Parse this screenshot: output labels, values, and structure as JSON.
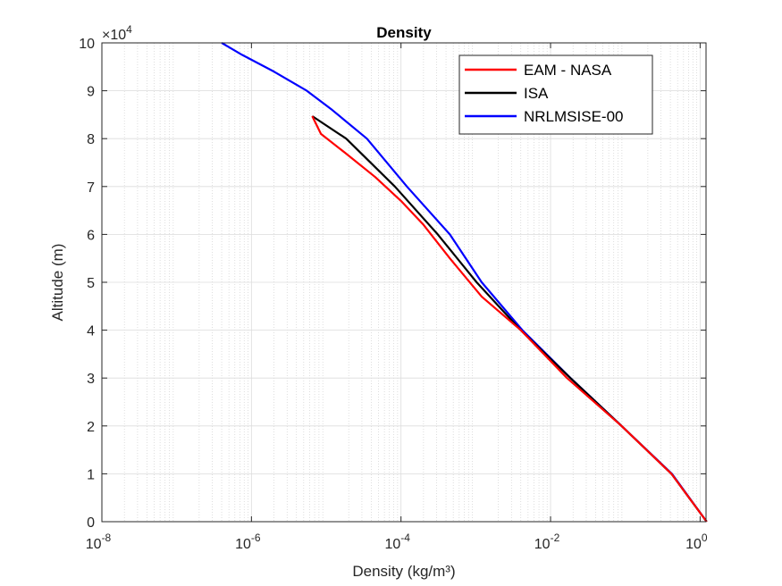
{
  "chart_data": {
    "type": "line",
    "title": "Density",
    "xlabel": "Density (kg/m³)",
    "ylabel": "Altitude (m)",
    "xscale": "log",
    "xlim": [
      1e-08,
      1.2
    ],
    "ylim": [
      0,
      100000
    ],
    "y_exponent_label": "×10^4",
    "x_ticks": [
      {
        "value": 1e-08,
        "base": "10",
        "exp": "-8"
      },
      {
        "value": 1e-06,
        "base": "10",
        "exp": "-6"
      },
      {
        "value": 0.0001,
        "base": "10",
        "exp": "-4"
      },
      {
        "value": 0.01,
        "base": "10",
        "exp": "-2"
      },
      {
        "value": 1,
        "base": "10",
        "exp": "0"
      }
    ],
    "y_ticks": [
      {
        "value": 0,
        "label": "0"
      },
      {
        "value": 10000,
        "label": "1"
      },
      {
        "value": 20000,
        "label": "2"
      },
      {
        "value": 30000,
        "label": "3"
      },
      {
        "value": 40000,
        "label": "4"
      },
      {
        "value": 50000,
        "label": "5"
      },
      {
        "value": 60000,
        "label": "6"
      },
      {
        "value": 70000,
        "label": "7"
      },
      {
        "value": 80000,
        "label": "8"
      },
      {
        "value": 90000,
        "label": "9"
      },
      {
        "value": 100000,
        "label": "10"
      }
    ],
    "grid": true,
    "minor_grid": true,
    "legend_position": "top-right",
    "series": [
      {
        "name": "EAM - NASA",
        "color": "#ff0000",
        "points": [
          [
            1.225,
            0
          ],
          [
            0.4135,
            10000
          ],
          [
            0.08891,
            20000
          ],
          [
            0.0166,
            30000
          ],
          [
            0.004,
            40000
          ],
          [
            0.0012,
            47000
          ],
          [
            0.00045,
            55000
          ],
          [
            0.0002,
            62000
          ],
          [
            0.0001,
            67000
          ],
          [
            4.5e-05,
            72000
          ],
          [
            1.8e-05,
            77000
          ],
          [
            8.5e-06,
            81000
          ],
          [
            6.5e-06,
            84700
          ]
        ]
      },
      {
        "name": "ISA",
        "color": "#000000",
        "points": [
          [
            1.225,
            0
          ],
          [
            0.4135,
            10000
          ],
          [
            0.08891,
            20000
          ],
          [
            0.01841,
            30000
          ],
          [
            0.003996,
            40000
          ],
          [
            0.001027,
            50000
          ],
          [
            0.00031,
            60000
          ],
          [
            8.28e-05,
            70000
          ],
          [
            1.85e-05,
            80000
          ],
          [
            6.5e-06,
            84700
          ]
        ]
      },
      {
        "name": "NRLMSISE-00",
        "color": "#0000ff",
        "points": [
          [
            1.225,
            0
          ],
          [
            0.42,
            10000
          ],
          [
            0.089,
            20000
          ],
          [
            0.0185,
            30000
          ],
          [
            0.0042,
            40000
          ],
          [
            0.0012,
            50000
          ],
          [
            0.00045,
            60000
          ],
          [
            0.00012,
            70000
          ],
          [
            3.5e-05,
            80000
          ],
          [
            1.2e-05,
            86000
          ],
          [
            5.5e-06,
            90000
          ],
          [
            2e-06,
            94000
          ],
          [
            7.5e-07,
            97500
          ],
          [
            4e-07,
            100000
          ]
        ]
      }
    ]
  }
}
